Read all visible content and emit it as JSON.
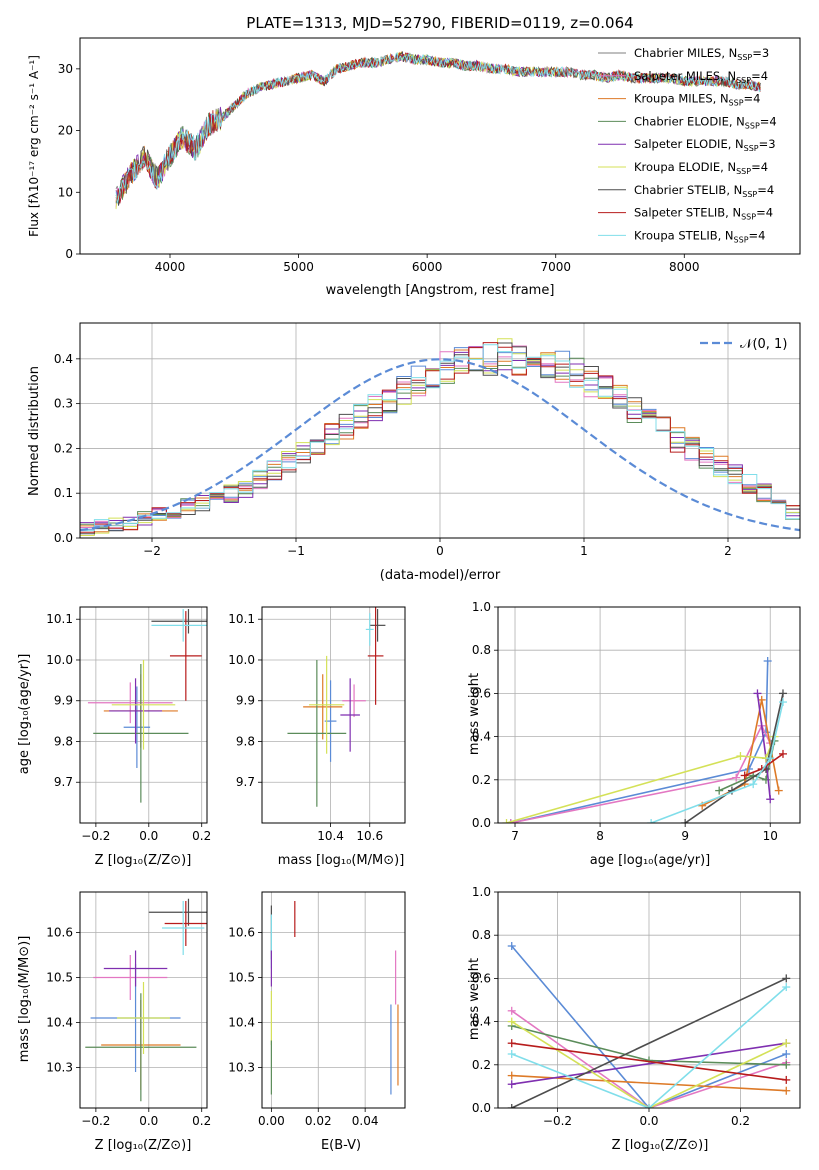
{
  "colors": {
    "miles_chabrier": "#7f7f7f",
    "miles_salpeter": "#e377c2",
    "miles_kroupa": "#dd7a27",
    "elodie_chabrier": "#5b8c5a",
    "elodie_salpeter": "#7f2fb0",
    "elodie_kroupa": "#d4e157",
    "stelib_chabrier": "#4d4d4d",
    "stelib_salpeter": "#b71c1c",
    "stelib_kroupa": "#80deea",
    "gauss": "#5b8bd6",
    "extra_blue": "#5b8bd6"
  },
  "chart_data": [
    {
      "id": "spectrum",
      "type": "line",
      "title": "PLATE=1313, MJD=52790, FIBERID=0119, z=0.064",
      "xlabel": "wavelength [Angstrom, rest frame]",
      "ylabel": "Flux [fλ10⁻¹⁷ erg cm⁻² s⁻¹ A⁻¹]",
      "xlim": [
        3300,
        8900
      ],
      "ylim": [
        0,
        35
      ],
      "xticks": [
        "4000",
        "5000",
        "6000",
        "7000",
        "8000"
      ],
      "yticks": [
        "0",
        "10",
        "20",
        "30"
      ],
      "x": [
        3580,
        3700,
        3800,
        3900,
        4000,
        4100,
        4200,
        4300,
        4400,
        4500,
        4600,
        4700,
        4800,
        4900,
        5000,
        5100,
        5200,
        5300,
        5400,
        5500,
        5600,
        5700,
        5800,
        5900,
        6000,
        6100,
        6200,
        6300,
        6400,
        6500,
        6600,
        6700,
        6800,
        6900,
        7000,
        7100,
        7200,
        7300,
        7400,
        7500,
        7600,
        7700,
        7800,
        7900,
        8000,
        8100,
        8200,
        8300,
        8400,
        8500,
        8600
      ],
      "y": [
        9,
        13,
        16,
        12,
        16,
        19,
        17,
        21,
        22,
        24,
        26,
        27,
        27.5,
        28,
        28.5,
        29,
        28,
        30,
        30.5,
        31,
        31,
        31.5,
        32,
        31.5,
        31.5,
        31,
        31,
        30.5,
        30.5,
        30,
        30,
        29.5,
        29.5,
        29.5,
        29.5,
        29.5,
        29,
        29,
        28.5,
        29,
        28.5,
        28.5,
        28.5,
        28.5,
        28,
        28,
        28,
        28,
        27.5,
        27.5,
        27
      ],
      "legend": [
        {
          "label": "Chabrier MILES, N",
          "sub": "SSP",
          "tail": "=3",
          "color": "miles_chabrier"
        },
        {
          "label": "Salpeter MILES, N",
          "sub": "SSP",
          "tail": "=4",
          "color": "miles_salpeter"
        },
        {
          "label": "Kroupa MILES, N",
          "sub": "SSP",
          "tail": "=4",
          "color": "miles_kroupa"
        },
        {
          "label": "Chabrier ELODIE, N",
          "sub": "SSP",
          "tail": "=4",
          "color": "elodie_chabrier"
        },
        {
          "label": "Salpeter ELODIE, N",
          "sub": "SSP",
          "tail": "=3",
          "color": "elodie_salpeter"
        },
        {
          "label": "Kroupa ELODIE, N",
          "sub": "SSP",
          "tail": "=4",
          "color": "elodie_kroupa"
        },
        {
          "label": "Chabrier STELIB, N",
          "sub": "SSP",
          "tail": "=4",
          "color": "stelib_chabrier"
        },
        {
          "label": "Salpeter STELIB, N",
          "sub": "SSP",
          "tail": "=4",
          "color": "stelib_salpeter"
        },
        {
          "label": "Kroupa STELIB, N",
          "sub": "SSP",
          "tail": "=4",
          "color": "stelib_kroupa"
        }
      ],
      "grid": false
    },
    {
      "id": "residuals",
      "type": "histogram",
      "xlabel": "(data-model)/error",
      "ylabel": "Normed distribution",
      "xlim": [
        -2.5,
        2.5
      ],
      "ylim": [
        0,
        0.48
      ],
      "xticks": [
        "−2",
        "−1",
        "0",
        "1",
        "2"
      ],
      "yticks": [
        "0.0",
        "0.1",
        "0.2",
        "0.3",
        "0.4"
      ],
      "bin_width": 0.1,
      "bin_start": -2.5,
      "counts": [
        0.02,
        0.025,
        0.03,
        0.035,
        0.045,
        0.05,
        0.06,
        0.07,
        0.08,
        0.09,
        0.1,
        0.11,
        0.13,
        0.15,
        0.17,
        0.19,
        0.21,
        0.23,
        0.25,
        0.27,
        0.29,
        0.31,
        0.33,
        0.35,
        0.37,
        0.38,
        0.39,
        0.4,
        0.4,
        0.41,
        0.4,
        0.4,
        0.39,
        0.38,
        0.37,
        0.35,
        0.33,
        0.31,
        0.29,
        0.27,
        0.25,
        0.22,
        0.2,
        0.18,
        0.16,
        0.14,
        0.12,
        0.1,
        0.08,
        0.06
      ],
      "gauss_label": "𝒩(0, 1)",
      "grid": true
    },
    {
      "id": "z_age",
      "type": "errorbar",
      "xlabel": "Z [log₁₀(Z/Z⊙)]",
      "ylabel": "age  [log₁₀(age/yr)]",
      "xlim": [
        -0.26,
        0.22
      ],
      "ylim": [
        9.6,
        10.13
      ],
      "xticks": [
        "−0.2",
        "0.0",
        "0.2"
      ],
      "yticks": [
        "9.7",
        "9.8",
        "9.9",
        "10.0",
        "10.1"
      ],
      "points": [
        {
          "x": -0.045,
          "y": 9.835,
          "xerr": 0.05,
          "yerr": 0.1,
          "color": "extra_blue"
        },
        {
          "x": -0.07,
          "y": 9.895,
          "xerr": 0.16,
          "yerr": 0.05,
          "color": "miles_salpeter"
        },
        {
          "x": -0.03,
          "y": 9.875,
          "xerr": 0.14,
          "yerr": 0.09,
          "color": "miles_kroupa"
        },
        {
          "x": -0.03,
          "y": 9.82,
          "xerr": 0.18,
          "yerr": 0.17,
          "color": "elodie_chabrier"
        },
        {
          "x": -0.05,
          "y": 9.875,
          "xerr": 0.1,
          "yerr": 0.08,
          "color": "elodie_salpeter"
        },
        {
          "x": -0.02,
          "y": 9.89,
          "xerr": 0.12,
          "yerr": 0.11,
          "color": "elodie_kroupa"
        },
        {
          "x": 0.15,
          "y": 10.095,
          "xerr": 0.14,
          "yerr": 0.03,
          "color": "stelib_chabrier"
        },
        {
          "x": 0.14,
          "y": 10.01,
          "xerr": 0.06,
          "yerr": 0.11,
          "color": "stelib_salpeter"
        },
        {
          "x": 0.13,
          "y": 10.085,
          "xerr": 0.12,
          "yerr": 0.04,
          "color": "stelib_kroupa"
        }
      ]
    },
    {
      "id": "mass_age",
      "type": "errorbar",
      "xlabel": "mass [log₁₀(M/M⊙)]",
      "ylabel": "",
      "xlim": [
        10.05,
        10.78
      ],
      "ylim": [
        9.6,
        10.13
      ],
      "xticks": [
        "10.4",
        "10.6"
      ],
      "yticks": [
        "9.7",
        "9.8",
        "9.9",
        "10.0",
        "10.1"
      ],
      "points": [
        {
          "x": 10.4,
          "y": 9.85,
          "xerr": 0.03,
          "yerr": 0.1,
          "color": "extra_blue"
        },
        {
          "x": 10.52,
          "y": 9.9,
          "xerr": 0.06,
          "yerr": 0.04,
          "color": "miles_salpeter"
        },
        {
          "x": 10.36,
          "y": 9.885,
          "xerr": 0.1,
          "yerr": 0.08,
          "color": "miles_kroupa"
        },
        {
          "x": 10.33,
          "y": 9.82,
          "xerr": 0.15,
          "yerr": 0.18,
          "color": "elodie_chabrier"
        },
        {
          "x": 10.5,
          "y": 9.865,
          "xerr": 0.05,
          "yerr": 0.09,
          "color": "elodie_salpeter"
        },
        {
          "x": 10.38,
          "y": 9.89,
          "xerr": 0.09,
          "yerr": 0.12,
          "color": "elodie_kroupa"
        },
        {
          "x": 10.64,
          "y": 10.085,
          "xerr": 0.04,
          "yerr": 0.04,
          "color": "stelib_chabrier"
        },
        {
          "x": 10.63,
          "y": 10.01,
          "xerr": 0.04,
          "yerr": 0.12,
          "color": "stelib_salpeter"
        },
        {
          "x": 10.6,
          "y": 10.075,
          "xerr": 0.02,
          "yerr": 0.04,
          "color": "stelib_kroupa"
        }
      ]
    },
    {
      "id": "weight_age",
      "type": "line",
      "xlabel": "age  [log₁₀(age/yr)]",
      "ylabel": "mass weight",
      "xlim": [
        6.8,
        10.35
      ],
      "ylim": [
        0,
        1
      ],
      "xticks": [
        "7",
        "8",
        "9",
        "10"
      ],
      "yticks": [
        "0.0",
        "0.2",
        "0.4",
        "0.6",
        "0.8",
        "1.0"
      ],
      "series": [
        {
          "color": "extra_blue",
          "x": [
            6.95,
            9.75,
            9.95,
            9.97
          ],
          "y": [
            0.0,
            0.25,
            0.42,
            0.75
          ]
        },
        {
          "color": "miles_salpeter",
          "x": [
            6.95,
            9.6,
            9.9,
            10.0
          ],
          "y": [
            0.0,
            0.21,
            0.45,
            0.37
          ]
        },
        {
          "color": "miles_kroupa",
          "x": [
            9.2,
            9.7,
            9.9,
            10.1
          ],
          "y": [
            0.08,
            0.18,
            0.57,
            0.15
          ]
        },
        {
          "color": "elodie_chabrier",
          "x": [
            9.4,
            9.8,
            9.95,
            10.05
          ],
          "y": [
            0.15,
            0.22,
            0.2,
            0.38
          ]
        },
        {
          "color": "elodie_salpeter",
          "x": [
            9.85,
            9.95,
            10.0
          ],
          "y": [
            0.6,
            0.3,
            0.11
          ]
        },
        {
          "color": "elodie_kroupa",
          "x": [
            6.9,
            9.65,
            9.95,
            10.05
          ],
          "y": [
            0.0,
            0.31,
            0.3,
            0.4
          ]
        },
        {
          "color": "stelib_chabrier",
          "x": [
            9.0,
            9.55,
            9.95,
            10.15
          ],
          "y": [
            0.0,
            0.15,
            0.25,
            0.6
          ]
        },
        {
          "color": "stelib_salpeter",
          "x": [
            9.7,
            9.9,
            10.15
          ],
          "y": [
            0.22,
            0.25,
            0.32
          ]
        },
        {
          "color": "stelib_kroupa",
          "x": [
            8.6,
            9.8,
            10.0,
            10.15
          ],
          "y": [
            0.0,
            0.18,
            0.3,
            0.56
          ]
        }
      ]
    },
    {
      "id": "z_mass",
      "type": "errorbar",
      "xlabel": "Z [log₁₀(Z/Z⊙)]",
      "ylabel": "mass [log₁₀(M/M⊙)]",
      "xlim": [
        -0.26,
        0.22
      ],
      "ylim": [
        10.21,
        10.69
      ],
      "xticks": [
        "−0.2",
        "0.0",
        "0.2"
      ],
      "yticks": [
        "10.3",
        "10.4",
        "10.5",
        "10.6"
      ],
      "points": [
        {
          "x": -0.05,
          "y": 10.41,
          "xerr": 0.17,
          "yerr": 0.12,
          "color": "extra_blue"
        },
        {
          "x": -0.07,
          "y": 10.5,
          "xerr": 0.14,
          "yerr": 0.05,
          "color": "miles_salpeter"
        },
        {
          "x": -0.03,
          "y": 10.35,
          "xerr": 0.15,
          "yerr": 0.1,
          "color": "miles_kroupa"
        },
        {
          "x": -0.03,
          "y": 10.345,
          "xerr": 0.21,
          "yerr": 0.12,
          "color": "elodie_chabrier"
        },
        {
          "x": -0.05,
          "y": 10.52,
          "xerr": 0.12,
          "yerr": 0.04,
          "color": "elodie_salpeter"
        },
        {
          "x": -0.02,
          "y": 10.41,
          "xerr": 0.1,
          "yerr": 0.08,
          "color": "elodie_kroupa"
        },
        {
          "x": 0.15,
          "y": 10.645,
          "xerr": 0.15,
          "yerr": 0.03,
          "color": "stelib_chabrier"
        },
        {
          "x": 0.14,
          "y": 10.62,
          "xerr": 0.08,
          "yerr": 0.05,
          "color": "stelib_salpeter"
        },
        {
          "x": 0.13,
          "y": 10.61,
          "xerr": 0.08,
          "yerr": 0.06,
          "color": "stelib_kroupa"
        }
      ]
    },
    {
      "id": "ebv_mass",
      "type": "errorbar",
      "xlabel": "E(B-V)",
      "ylabel": "",
      "xlim": [
        -0.004,
        0.057
      ],
      "ylim": [
        10.21,
        10.69
      ],
      "xticks": [
        "0.00",
        "0.02",
        "0.04"
      ],
      "yticks": [
        "10.3",
        "10.4",
        "10.5",
        "10.6"
      ],
      "points": [
        {
          "x": 0.0,
          "y": 10.6,
          "xerr": 0,
          "yerr": 0.06,
          "color": "stelib_chabrier"
        },
        {
          "x": 0.0,
          "y": 10.58,
          "xerr": 0,
          "yerr": 0.06,
          "color": "stelib_kroupa"
        },
        {
          "x": 0.0,
          "y": 10.52,
          "xerr": 0,
          "yerr": 0.04,
          "color": "elodie_salpeter"
        },
        {
          "x": 0.0,
          "y": 10.41,
          "xerr": 0,
          "yerr": 0.06,
          "color": "elodie_kroupa"
        },
        {
          "x": 0.0,
          "y": 10.3,
          "xerr": 0,
          "yerr": 0.06,
          "color": "elodie_chabrier"
        },
        {
          "x": 0.01,
          "y": 10.63,
          "xerr": 0,
          "yerr": 0.04,
          "color": "stelib_salpeter"
        },
        {
          "x": 0.051,
          "y": 10.34,
          "xerr": 0,
          "yerr": 0.1,
          "color": "extra_blue"
        },
        {
          "x": 0.053,
          "y": 10.5,
          "xerr": 0,
          "yerr": 0.06,
          "color": "miles_salpeter"
        },
        {
          "x": 0.054,
          "y": 10.35,
          "xerr": 0,
          "yerr": 0.09,
          "color": "miles_kroupa"
        }
      ]
    },
    {
      "id": "weight_z",
      "type": "line",
      "xlabel": "Z [log₁₀(Z/Z⊙)]",
      "ylabel": "mass weight",
      "xlim": [
        -0.33,
        0.33
      ],
      "ylim": [
        0,
        1
      ],
      "xticks": [
        "−0.2",
        "0.0",
        "0.2"
      ],
      "yticks": [
        "0.0",
        "0.2",
        "0.4",
        "0.6",
        "0.8",
        "1.0"
      ],
      "series": [
        {
          "color": "extra_blue",
          "x": [
            -0.3,
            0.0,
            0.3
          ],
          "y": [
            0.75,
            0.0,
            0.25
          ]
        },
        {
          "color": "miles_salpeter",
          "x": [
            -0.3,
            0.0,
            0.3
          ],
          "y": [
            0.45,
            0.0,
            0.21
          ]
        },
        {
          "color": "miles_kroupa",
          "x": [
            -0.3,
            0.3
          ],
          "y": [
            0.15,
            0.08
          ]
        },
        {
          "color": "elodie_chabrier",
          "x": [
            -0.3,
            0.0,
            0.3
          ],
          "y": [
            0.38,
            0.22,
            0.2
          ]
        },
        {
          "color": "elodie_salpeter",
          "x": [
            -0.3,
            0.3
          ],
          "y": [
            0.11,
            0.3
          ]
        },
        {
          "color": "elodie_kroupa",
          "x": [
            -0.3,
            0.0,
            0.3
          ],
          "y": [
            0.4,
            0.0,
            0.3
          ]
        },
        {
          "color": "stelib_chabrier",
          "x": [
            -0.3,
            0.3
          ],
          "y": [
            0.0,
            0.6
          ]
        },
        {
          "color": "stelib_salpeter",
          "x": [
            -0.3,
            0.3
          ],
          "y": [
            0.3,
            0.13
          ]
        },
        {
          "color": "stelib_kroupa",
          "x": [
            -0.3,
            0.0,
            0.3
          ],
          "y": [
            0.25,
            0.0,
            0.56
          ]
        }
      ]
    }
  ]
}
